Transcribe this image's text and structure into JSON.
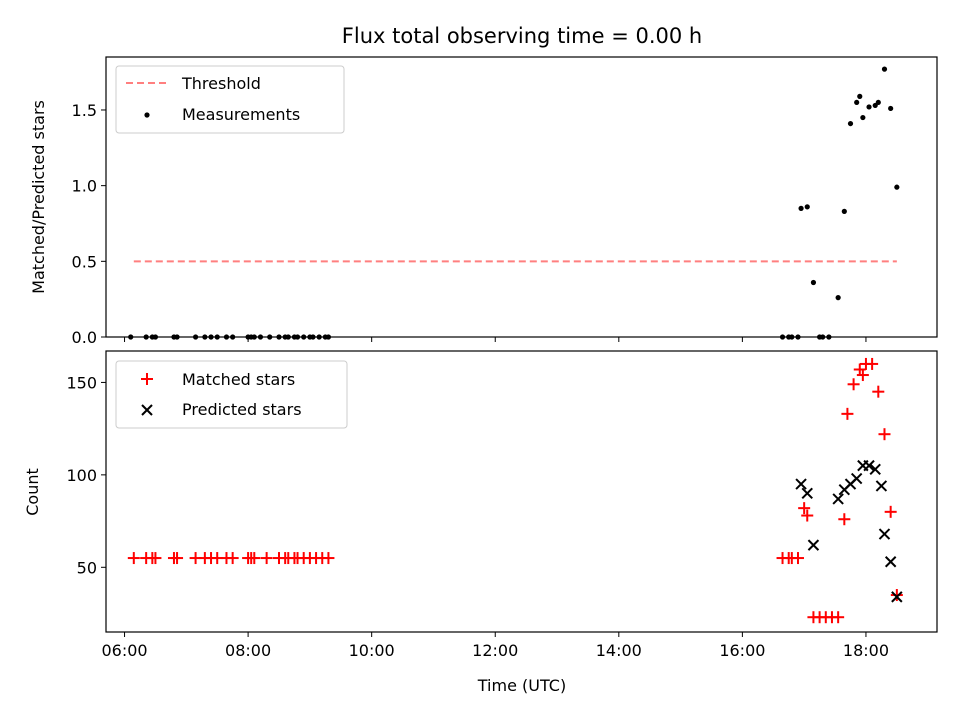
{
  "chart_data": [
    {
      "type": "scatter",
      "title": "Flux total observing time = 0.00 h",
      "ylabel": "Matched/Predicted stars",
      "xlabel": "",
      "xlim": [
        5.7,
        19.15
      ],
      "ylim": [
        0.0,
        1.85
      ],
      "xticks": [
        6,
        8,
        10,
        12,
        14,
        16,
        18
      ],
      "xtick_labels_shown": false,
      "yticks": [
        0.0,
        0.5,
        1.0,
        1.5
      ],
      "ytick_labels": [
        "0.0",
        "0.5",
        "1.0",
        "1.5"
      ],
      "legend_position": "upper-left",
      "grid": false,
      "threshold": {
        "name": "Threshold",
        "color": "#ff7f7f",
        "style": "dashed",
        "x": [
          6.15,
          18.5
        ],
        "y": 0.5
      },
      "series": [
        {
          "name": "Measurements",
          "marker": "dot",
          "color": "#000000",
          "x": [
            6.1,
            6.35,
            6.45,
            6.5,
            6.8,
            6.85,
            7.15,
            7.3,
            7.4,
            7.5,
            7.65,
            7.75,
            8.0,
            8.05,
            8.1,
            8.2,
            8.35,
            8.5,
            8.6,
            8.65,
            8.75,
            8.8,
            8.9,
            9.0,
            9.05,
            9.15,
            9.25,
            9.3,
            16.65,
            16.75,
            16.8,
            16.9,
            16.95,
            17.05,
            17.15,
            17.25,
            17.3,
            17.4,
            17.55,
            17.65,
            17.75,
            17.85,
            17.9,
            17.95,
            18.05,
            18.15,
            18.2,
            18.3,
            18.4,
            18.5
          ],
          "y": [
            0,
            0,
            0,
            0,
            0,
            0,
            0,
            0,
            0,
            0,
            0,
            0,
            0,
            0,
            0,
            0,
            0,
            0,
            0,
            0,
            0,
            0,
            0,
            0,
            0,
            0,
            0,
            0,
            0,
            0,
            0,
            0,
            0.85,
            0.86,
            0.36,
            0,
            0,
            0,
            0.26,
            0.83,
            1.41,
            1.55,
            1.59,
            1.45,
            1.52,
            1.53,
            1.55,
            1.77,
            1.51,
            0.99
          ]
        }
      ]
    },
    {
      "type": "scatter",
      "title": "",
      "xlabel": "Time (UTC)",
      "ylabel": "Count",
      "xlim": [
        5.7,
        19.15
      ],
      "ylim": [
        15,
        167
      ],
      "xticks": [
        6,
        8,
        10,
        12,
        14,
        16,
        18
      ],
      "xtick_labels": [
        "06:00",
        "08:00",
        "10:00",
        "12:00",
        "14:00",
        "16:00",
        "18:00"
      ],
      "yticks": [
        50,
        100,
        150
      ],
      "ytick_labels": [
        "50",
        "100",
        "150"
      ],
      "legend_position": "upper-left",
      "grid": false,
      "series": [
        {
          "name": "Matched stars",
          "marker": "plus",
          "color": "#ff0000",
          "x": [
            6.15,
            6.35,
            6.45,
            6.5,
            6.8,
            6.85,
            7.15,
            7.3,
            7.4,
            7.5,
            7.65,
            7.75,
            8.0,
            8.05,
            8.1,
            8.3,
            8.5,
            8.6,
            8.65,
            8.75,
            8.8,
            8.9,
            9.0,
            9.1,
            9.2,
            9.3,
            16.65,
            16.75,
            16.8,
            16.9,
            17.0,
            17.05,
            17.15,
            17.25,
            17.35,
            17.45,
            17.55,
            17.65,
            17.7,
            17.8,
            17.9,
            17.95,
            18.0,
            18.1,
            18.2,
            18.3,
            18.4,
            18.5
          ],
          "y": [
            55,
            55,
            55,
            55,
            55,
            55,
            55,
            55,
            55,
            55,
            55,
            55,
            55,
            55,
            55,
            55,
            55,
            55,
            55,
            55,
            55,
            55,
            55,
            55,
            55,
            55,
            55,
            55,
            55,
            55,
            82,
            78,
            23,
            23,
            23,
            23,
            23,
            76,
            133,
            149,
            157,
            154,
            160,
            160,
            145,
            122,
            80,
            35
          ]
        },
        {
          "name": "Predicted stars",
          "marker": "x",
          "color": "#000000",
          "x": [
            16.95,
            17.05,
            17.15,
            17.55,
            17.65,
            17.75,
            17.85,
            17.95,
            18.05,
            18.15,
            18.25,
            18.3,
            18.4,
            18.5
          ],
          "y": [
            95,
            90,
            62,
            87,
            92,
            95,
            98,
            105,
            105,
            103,
            94,
            68,
            53,
            34
          ]
        }
      ]
    }
  ]
}
